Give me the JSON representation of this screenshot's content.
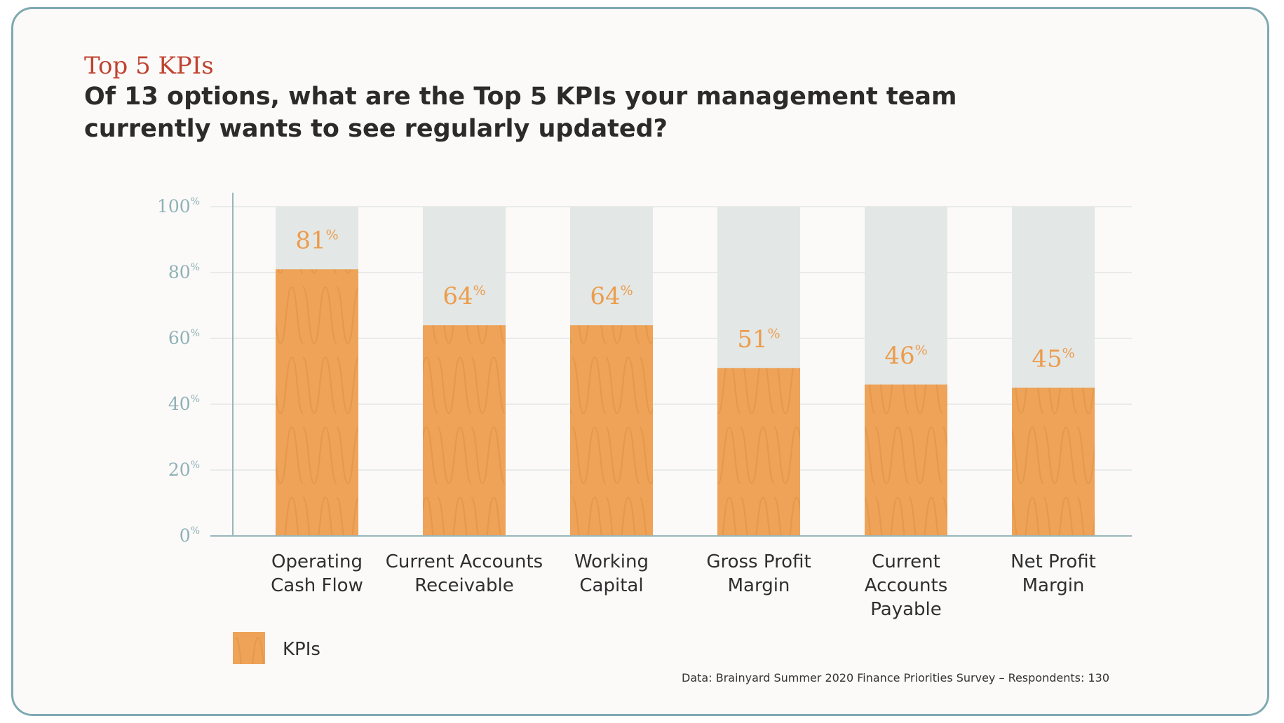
{
  "kicker": "Top 5 KPIs",
  "headline": "Of 13 options, what are the Top 5 KPIs your management team currently wants to see regularly updated?",
  "source": "Data: Brainyard Summer 2020 Finance Priorities Survey – Respondents: 130",
  "colors": {
    "accent_red": "#c0422f",
    "bar_fill": "#eea358",
    "bar_background": "#e3e7e6",
    "label_orange": "#ec9c4c",
    "axis_teal": "#8fb1b7",
    "border": "#7fa9b1"
  },
  "chart_data": {
    "type": "bar",
    "title": "Of 13 options, what are the Top 5 KPIs your management team currently wants to see regularly updated?",
    "xlabel": "",
    "ylabel": "",
    "ylim": [
      0,
      100
    ],
    "unit": "%",
    "yticks": [
      0,
      20,
      40,
      60,
      80,
      100
    ],
    "grid": true,
    "legend_position": "bottom-left",
    "categories": [
      [
        "Operating",
        "Cash Flow"
      ],
      [
        "Current Accounts",
        "Receivable"
      ],
      [
        "Working",
        "Capital"
      ],
      [
        "Gross Profit",
        "Margin"
      ],
      [
        "Current",
        "Accounts",
        "Payable"
      ],
      [
        "Net Profit",
        "Margin"
      ]
    ],
    "series": [
      {
        "name": "KPIs",
        "values": [
          81,
          64,
          64,
          51,
          46,
          45
        ]
      }
    ]
  }
}
